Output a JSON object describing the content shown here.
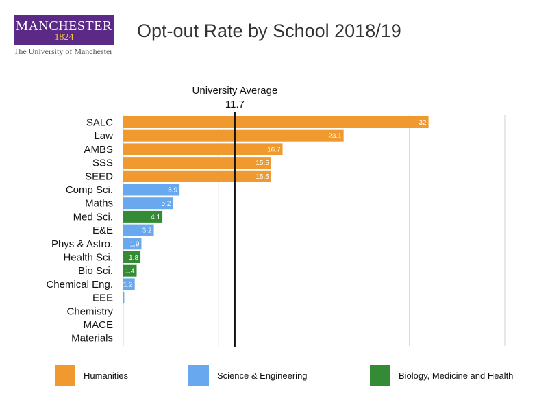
{
  "logo": {
    "name": "MANCHESTER",
    "year": "1824",
    "subtitle": "The University of Manchester"
  },
  "colors": {
    "humanities": "#f0992f",
    "science": "#68a8ef",
    "biology": "#358a35",
    "grid": "#d0d0d0",
    "average_line": "#111111"
  },
  "chart_data": {
    "type": "bar",
    "orientation": "horizontal",
    "title": "Opt-out Rate by School 2018/19",
    "xlim": [
      0,
      40
    ],
    "x_ticks": [
      0,
      10,
      20,
      30,
      40
    ],
    "grid": "vertical",
    "legend_position": "bottom",
    "categories": [
      "SALC",
      "Law",
      "AMBS",
      "SSS",
      "SEED",
      "Comp Sci.",
      "Maths",
      "Med Sci.",
      "E&E",
      "Phys & Astro.",
      "Health Sci.",
      "Bio Sci.",
      "Chemical Eng.",
      "EEE",
      "Chemistry",
      "MACE",
      "Materials"
    ],
    "values": [
      32,
      23.1,
      16.7,
      15.5,
      15.5,
      5.9,
      5.2,
      4.1,
      3.2,
      1.9,
      1.8,
      1.4,
      1.2,
      0.1,
      0,
      0,
      0
    ],
    "data_labels": [
      "32",
      "23.1",
      "16.7",
      "15.5",
      "15.5",
      "5.9",
      "5.2",
      "4.1",
      "3.2",
      "1.9",
      "1.8",
      "1.4",
      "1.2",
      "",
      "",
      "",
      ""
    ],
    "groups": [
      "humanities",
      "humanities",
      "humanities",
      "humanities",
      "humanities",
      "science",
      "science",
      "biology",
      "science",
      "science",
      "biology",
      "biology",
      "science",
      "science",
      "science",
      "science",
      "science"
    ],
    "legend": [
      {
        "key": "humanities",
        "label": "Humanities"
      },
      {
        "key": "science",
        "label": "Science & Engineering"
      },
      {
        "key": "biology",
        "label": "Biology, Medicine and Health"
      }
    ],
    "average": {
      "label": "University Average",
      "value": 11.7,
      "value_label": "11.7"
    }
  }
}
